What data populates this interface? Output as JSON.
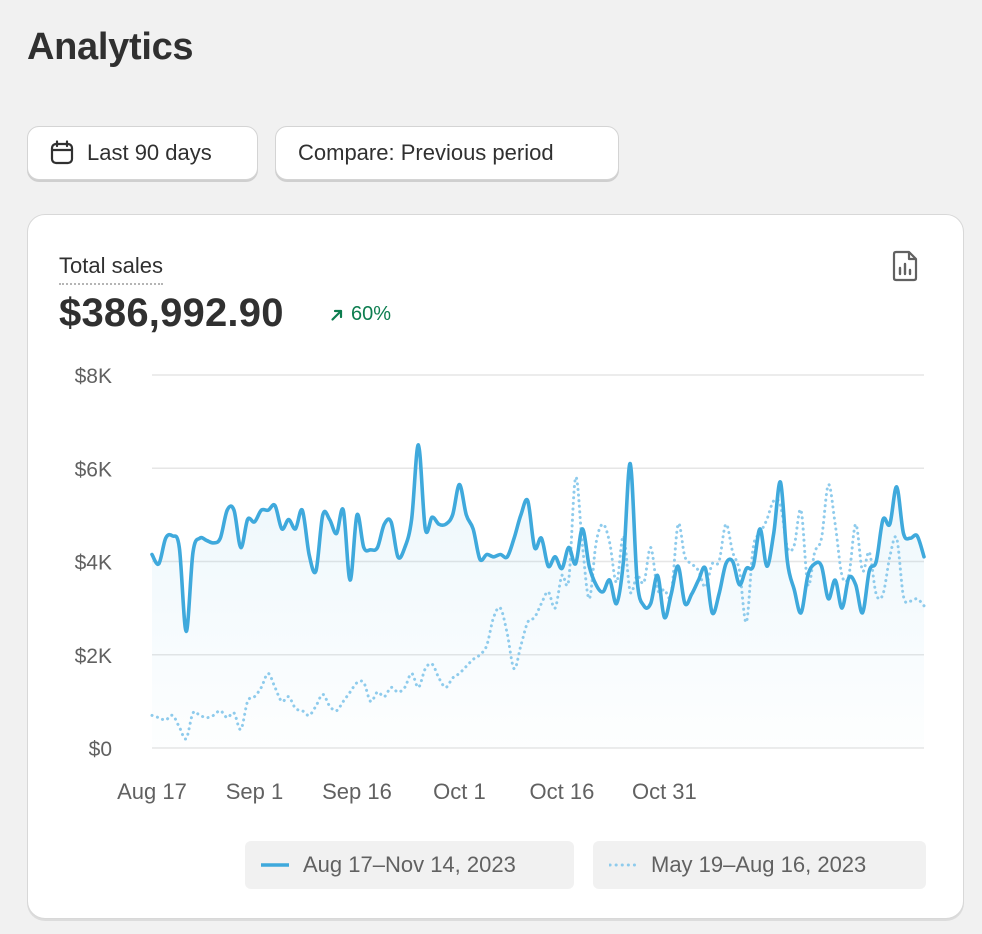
{
  "page": {
    "title": "Analytics"
  },
  "filters": {
    "date_range_label": "Last 90 days",
    "compare_label": "Compare: Previous period"
  },
  "card": {
    "metric_label": "Total sales",
    "metric_value": "$386,992.90",
    "metric_change": "60%",
    "icons": {
      "calendar": "calendar-icon",
      "export": "report-icon",
      "trend": "arrow-up-right-icon"
    }
  },
  "colors": {
    "current_series": "#3fa9dc",
    "previous_series": "#8ecbec",
    "positive": "#0c7d4f",
    "gridline": "#e6e6e6"
  },
  "chart_data": {
    "type": "line",
    "title": "Total sales",
    "xlabel": "",
    "ylabel": "",
    "ylim": [
      0,
      8000
    ],
    "y_ticks": [
      0,
      2000,
      4000,
      6000,
      8000
    ],
    "y_tick_labels": [
      "$0",
      "$2K",
      "$4K",
      "$6K",
      "$8K"
    ],
    "x_tick_labels": [
      "Aug 17",
      "Sep 1",
      "Sep 16",
      "Oct 1",
      "Oct 16",
      "Oct 31"
    ],
    "x_tick_days": [
      0,
      15,
      30,
      45,
      60,
      75
    ],
    "grid": true,
    "legend_position": "bottom",
    "series": [
      {
        "name": "Aug 17–Nov 14, 2023",
        "style": "solid",
        "values": [
          4150,
          3950,
          4500,
          4550,
          4300,
          2500,
          4200,
          4500,
          4450,
          4400,
          4500,
          5100,
          5100,
          4300,
          4900,
          4850,
          5100,
          5100,
          5200,
          4700,
          4900,
          4700,
          5100,
          4150,
          3800,
          5000,
          4900,
          4600,
          5100,
          3600,
          5000,
          4300,
          4250,
          4300,
          4800,
          4850,
          4100,
          4300,
          4900,
          6500,
          4700,
          4950,
          4800,
          4800,
          5000,
          5650,
          5000,
          4700,
          4050,
          4150,
          4100,
          4150,
          4100,
          4500,
          5000,
          5300,
          4300,
          4500,
          3900,
          4100,
          3850,
          4300,
          3950,
          4700,
          3900,
          3500,
          3350,
          3600,
          3100,
          4000,
          6100,
          3600,
          3050,
          3100,
          3700,
          2800,
          3300,
          3900,
          3100,
          3300,
          3600,
          3850,
          2900,
          3300,
          3950,
          4000,
          3500,
          3850,
          3900,
          4700,
          3900,
          4600,
          5700,
          4000,
          3400,
          2900,
          3700,
          3950,
          3900,
          3200,
          3600,
          3000,
          3650,
          3500,
          2900,
          3800,
          4000,
          4900,
          4800,
          5600,
          4600,
          4500,
          4550,
          4100
        ]
      },
      {
        "name": "May 19–Aug 16, 2023",
        "style": "dotted",
        "values": [
          700,
          650,
          600,
          700,
          450,
          200,
          750,
          700,
          650,
          700,
          800,
          650,
          750,
          400,
          1000,
          1100,
          1300,
          1600,
          1300,
          1000,
          1100,
          850,
          800,
          700,
          900,
          1150,
          900,
          800,
          1000,
          1200,
          1400,
          1400,
          1000,
          1200,
          1100,
          1300,
          1200,
          1300,
          1600,
          1300,
          1700,
          1800,
          1500,
          1300,
          1500,
          1600,
          1750,
          1900,
          2000,
          2200,
          2800,
          3000,
          2450,
          1700,
          2200,
          2700,
          2800,
          3100,
          3350,
          3000,
          3700,
          3600,
          5800,
          4350,
          3200,
          4400,
          4800,
          4400,
          3550,
          4550,
          3350,
          3700,
          3550,
          4300,
          3400,
          3400,
          3300,
          4800,
          4100,
          3950,
          3800,
          3450,
          3950,
          4000,
          4800,
          4200,
          3800,
          2700,
          4300,
          4600,
          4900,
          5300,
          5200,
          4300,
          4350,
          5100,
          3500,
          4200,
          4500,
          5650,
          4800,
          3700,
          3700,
          4800,
          3800,
          4200,
          3300,
          3300,
          4100,
          4500,
          3250,
          3150,
          3200,
          3050
        ]
      }
    ]
  }
}
